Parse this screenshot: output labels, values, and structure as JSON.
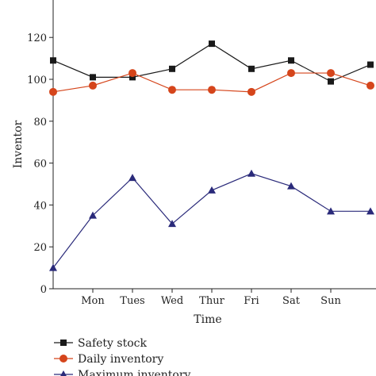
{
  "chart_data": {
    "type": "line",
    "title": "",
    "xlabel": "Time",
    "ylabel": "Inventor",
    "ylim": [
      0,
      140
    ],
    "yticks": [
      0,
      20,
      40,
      60,
      80,
      100,
      120
    ],
    "categories": [
      "",
      "Mon",
      "Tues",
      "Wed",
      "Thur",
      "Fri",
      "Sat",
      "Sun",
      ""
    ],
    "grid": false,
    "legend_position": "bottom-left",
    "series": [
      {
        "name": "Safety stock",
        "marker": "square",
        "color": "#1a1a1a",
        "values": [
          109,
          101,
          101,
          105,
          117,
          105,
          109,
          99,
          107
        ]
      },
      {
        "name": "Daily inventory",
        "marker": "circle",
        "color": "#d5451b",
        "values": [
          94,
          97,
          103,
          95,
          95,
          94,
          103,
          103,
          97
        ]
      },
      {
        "name": "Maximum inventory",
        "marker": "triangle",
        "color": "#2a2a7a",
        "values": [
          10,
          35,
          53,
          31,
          47,
          55,
          49,
          37,
          37
        ]
      }
    ]
  }
}
